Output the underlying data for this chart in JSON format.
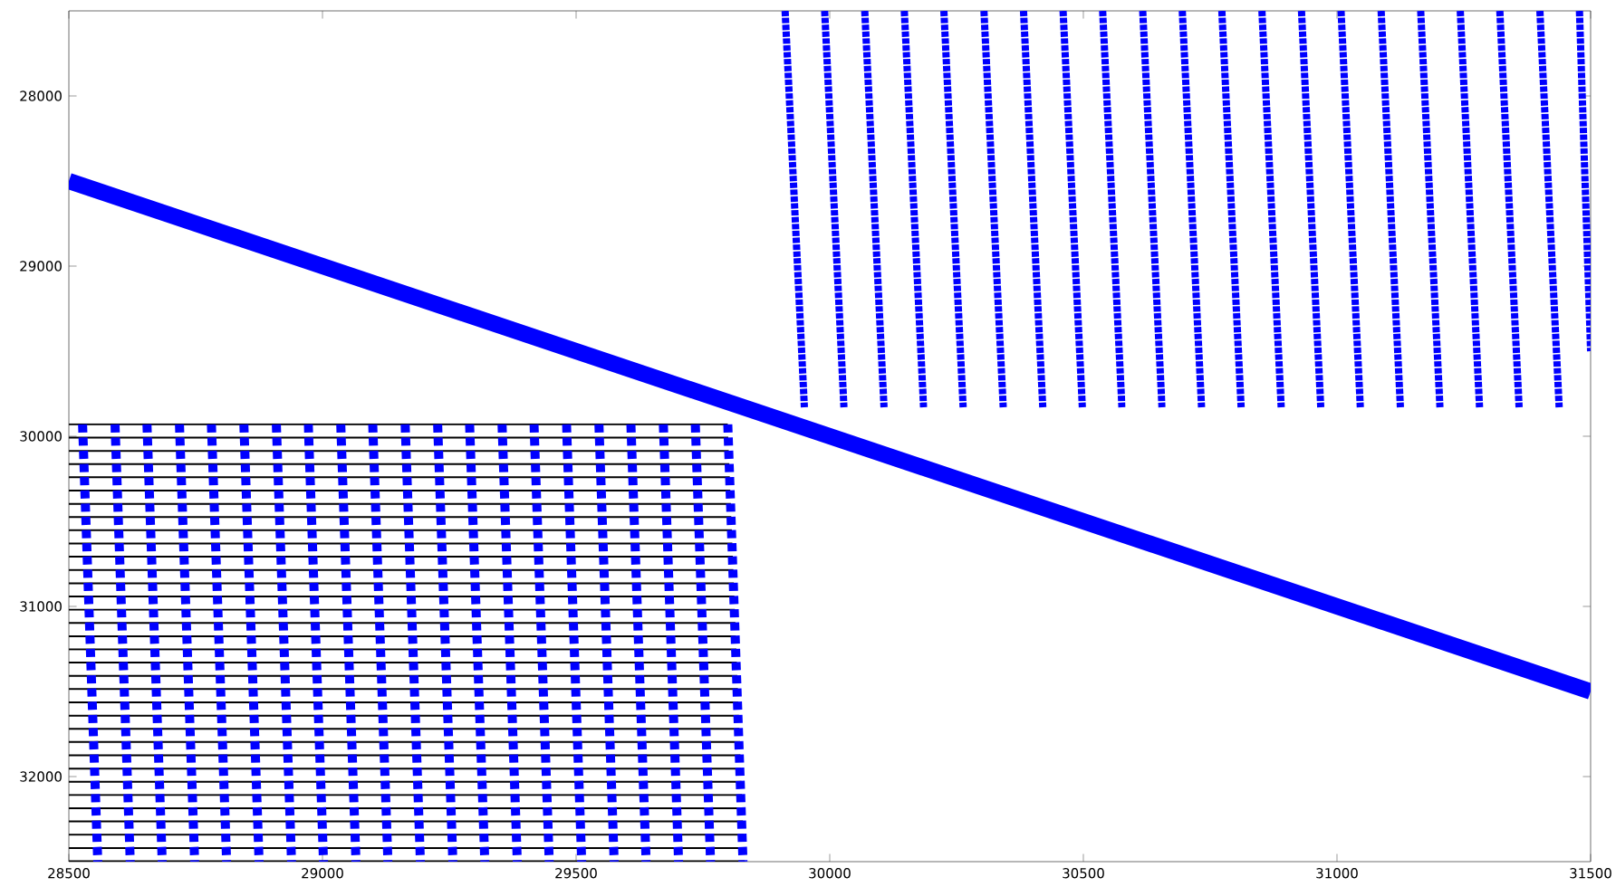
{
  "chart_data": {
    "type": "line",
    "xlim": [
      28500,
      31500
    ],
    "ylim": [
      32500,
      27500
    ],
    "xticks": [
      28500,
      29000,
      29500,
      30000,
      30500,
      31000,
      31500
    ],
    "yticks": [
      28000,
      29000,
      30000,
      31000,
      32000
    ],
    "series": [
      {
        "color": "#000000",
        "line_style": "solid",
        "x": [
          28500,
          29799
        ],
        "values": [
          29930,
          29930
        ]
      },
      {
        "color": "#000000",
        "line_style": "solid",
        "x": [
          28500,
          29800
        ],
        "values": [
          30008,
          30008
        ]
      },
      {
        "color": "#000000",
        "line_style": "solid",
        "x": [
          28500,
          29801
        ],
        "values": [
          30086,
          30086
        ]
      },
      {
        "color": "#000000",
        "line_style": "solid",
        "x": [
          28500,
          29802
        ],
        "values": [
          30163,
          30163
        ]
      },
      {
        "color": "#000000",
        "line_style": "solid",
        "x": [
          28500,
          29803
        ],
        "values": [
          30241,
          30241
        ]
      },
      {
        "color": "#000000",
        "line_style": "solid",
        "x": [
          28500,
          29804
        ],
        "values": [
          30319,
          30319
        ]
      },
      {
        "color": "#000000",
        "line_style": "solid",
        "x": [
          28500,
          29805
        ],
        "values": [
          30397,
          30397
        ]
      },
      {
        "color": "#000000",
        "line_style": "solid",
        "x": [
          28500,
          29806
        ],
        "values": [
          30475,
          30475
        ]
      },
      {
        "color": "#000000",
        "line_style": "solid",
        "x": [
          28500,
          29807
        ],
        "values": [
          30552,
          30552
        ]
      },
      {
        "color": "#000000",
        "line_style": "solid",
        "x": [
          28500,
          29808
        ],
        "values": [
          30630,
          30630
        ]
      },
      {
        "color": "#000000",
        "line_style": "solid",
        "x": [
          28500,
          29809
        ],
        "values": [
          30708,
          30708
        ]
      },
      {
        "color": "#000000",
        "line_style": "solid",
        "x": [
          28500,
          29810
        ],
        "values": [
          30786,
          30786
        ]
      },
      {
        "color": "#000000",
        "line_style": "solid",
        "x": [
          28500,
          29811
        ],
        "values": [
          30864,
          30864
        ]
      },
      {
        "color": "#000000",
        "line_style": "solid",
        "x": [
          28500,
          29812
        ],
        "values": [
          30941,
          30941
        ]
      },
      {
        "color": "#000000",
        "line_style": "solid",
        "x": [
          28500,
          29813
        ],
        "values": [
          31019,
          31019
        ]
      },
      {
        "color": "#000000",
        "line_style": "solid",
        "x": [
          28500,
          29814
        ],
        "values": [
          31097,
          31097
        ]
      },
      {
        "color": "#000000",
        "line_style": "solid",
        "x": [
          28500,
          29815
        ],
        "values": [
          31175,
          31175
        ]
      },
      {
        "color": "#000000",
        "line_style": "solid",
        "x": [
          28500,
          29816
        ],
        "values": [
          31253,
          31253
        ]
      },
      {
        "color": "#000000",
        "line_style": "solid",
        "x": [
          28500,
          29817
        ],
        "values": [
          31330,
          31330
        ]
      },
      {
        "color": "#000000",
        "line_style": "solid",
        "x": [
          28500,
          29818
        ],
        "values": [
          31408,
          31408
        ]
      },
      {
        "color": "#000000",
        "line_style": "solid",
        "x": [
          28500,
          29819
        ],
        "values": [
          31486,
          31486
        ]
      },
      {
        "color": "#000000",
        "line_style": "solid",
        "x": [
          28500,
          29820
        ],
        "values": [
          31564,
          31564
        ]
      },
      {
        "color": "#000000",
        "line_style": "solid",
        "x": [
          28500,
          29821
        ],
        "values": [
          31642,
          31642
        ]
      },
      {
        "color": "#000000",
        "line_style": "solid",
        "x": [
          28500,
          29822
        ],
        "values": [
          31719,
          31719
        ]
      },
      {
        "color": "#000000",
        "line_style": "solid",
        "x": [
          28500,
          29823
        ],
        "values": [
          31797,
          31797
        ]
      },
      {
        "color": "#000000",
        "line_style": "solid",
        "x": [
          28500,
          29824
        ],
        "values": [
          31875,
          31875
        ]
      },
      {
        "color": "#000000",
        "line_style": "solid",
        "x": [
          28500,
          29825
        ],
        "values": [
          31953,
          31953
        ]
      },
      {
        "color": "#000000",
        "line_style": "solid",
        "x": [
          28500,
          29826
        ],
        "values": [
          32031,
          32031
        ]
      },
      {
        "color": "#000000",
        "line_style": "solid",
        "x": [
          28500,
          29827
        ],
        "values": [
          32108,
          32108
        ]
      },
      {
        "color": "#000000",
        "line_style": "solid",
        "x": [
          28500,
          29828
        ],
        "values": [
          32186,
          32186
        ]
      },
      {
        "color": "#000000",
        "line_style": "solid",
        "x": [
          28500,
          29829
        ],
        "values": [
          32264,
          32264
        ]
      },
      {
        "color": "#000000",
        "line_style": "solid",
        "x": [
          28500,
          29830
        ],
        "values": [
          32342,
          32342
        ]
      },
      {
        "color": "#000000",
        "line_style": "solid",
        "x": [
          28500,
          29831
        ],
        "values": [
          32420,
          32420
        ]
      },
      {
        "color": "#000000",
        "line_style": "solid",
        "x": [
          28500,
          29832
        ],
        "values": [
          32497,
          32497
        ]
      },
      {
        "color": "#0000ff",
        "line_style": "dashed",
        "x": [
          28527,
          28557
        ],
        "values": [
          29930,
          32500
        ]
      },
      {
        "color": "#0000ff",
        "line_style": "dashed",
        "x": [
          28591,
          28621
        ],
        "values": [
          29930,
          32500
        ]
      },
      {
        "color": "#0000ff",
        "line_style": "dashed",
        "x": [
          28654,
          28684
        ],
        "values": [
          29930,
          32500
        ]
      },
      {
        "color": "#0000ff",
        "line_style": "dashed",
        "x": [
          28718,
          28748
        ],
        "values": [
          29930,
          32500
        ]
      },
      {
        "color": "#0000ff",
        "line_style": "dashed",
        "x": [
          28781,
          28811
        ],
        "values": [
          29930,
          32500
        ]
      },
      {
        "color": "#0000ff",
        "line_style": "dashed",
        "x": [
          28845,
          28875
        ],
        "values": [
          29930,
          32500
        ]
      },
      {
        "color": "#0000ff",
        "line_style": "dashed",
        "x": [
          28909,
          28939
        ],
        "values": [
          29930,
          32500
        ]
      },
      {
        "color": "#0000ff",
        "line_style": "dashed",
        "x": [
          28972,
          29002
        ],
        "values": [
          29930,
          32500
        ]
      },
      {
        "color": "#0000ff",
        "line_style": "dashed",
        "x": [
          29036,
          29066
        ],
        "values": [
          29930,
          32500
        ]
      },
      {
        "color": "#0000ff",
        "line_style": "dashed",
        "x": [
          29099,
          29129
        ],
        "values": [
          29930,
          32500
        ]
      },
      {
        "color": "#0000ff",
        "line_style": "dashed",
        "x": [
          29163,
          29193
        ],
        "values": [
          29930,
          32500
        ]
      },
      {
        "color": "#0000ff",
        "line_style": "dashed",
        "x": [
          29227,
          29257
        ],
        "values": [
          29930,
          32500
        ]
      },
      {
        "color": "#0000ff",
        "line_style": "dashed",
        "x": [
          29290,
          29320
        ],
        "values": [
          29930,
          32500
        ]
      },
      {
        "color": "#0000ff",
        "line_style": "dashed",
        "x": [
          29354,
          29384
        ],
        "values": [
          29930,
          32500
        ]
      },
      {
        "color": "#0000ff",
        "line_style": "dashed",
        "x": [
          29417,
          29447
        ],
        "values": [
          29930,
          32500
        ]
      },
      {
        "color": "#0000ff",
        "line_style": "dashed",
        "x": [
          29481,
          29511
        ],
        "values": [
          29930,
          32500
        ]
      },
      {
        "color": "#0000ff",
        "line_style": "dashed",
        "x": [
          29545,
          29575
        ],
        "values": [
          29930,
          32500
        ]
      },
      {
        "color": "#0000ff",
        "line_style": "dashed",
        "x": [
          29608,
          29638
        ],
        "values": [
          29930,
          32500
        ]
      },
      {
        "color": "#0000ff",
        "line_style": "dashed",
        "x": [
          29672,
          29702
        ],
        "values": [
          29930,
          32500
        ]
      },
      {
        "color": "#0000ff",
        "line_style": "dashed",
        "x": [
          29735,
          29765
        ],
        "values": [
          29930,
          32500
        ]
      },
      {
        "color": "#0000ff",
        "line_style": "dashed",
        "x": [
          29799,
          29829
        ],
        "values": [
          29930,
          32500
        ]
      },
      {
        "color": "#0000ff",
        "line_style": "solid",
        "x": [
          28500,
          31500
        ],
        "values": [
          28500,
          31500
        ]
      },
      {
        "color": "#0000ff",
        "line_style": "dotted",
        "x": [
          29912,
          29950
        ],
        "values": [
          27500,
          29830
        ]
      },
      {
        "color": "#0000ff",
        "line_style": "dotted",
        "x": [
          29990,
          30028
        ],
        "values": [
          27500,
          29830
        ]
      },
      {
        "color": "#0000ff",
        "line_style": "dotted",
        "x": [
          30069,
          30107
        ],
        "values": [
          27500,
          29830
        ]
      },
      {
        "color": "#0000ff",
        "line_style": "dotted",
        "x": [
          30147,
          30185
        ],
        "values": [
          27500,
          29830
        ]
      },
      {
        "color": "#0000ff",
        "line_style": "dotted",
        "x": [
          30225,
          30263
        ],
        "values": [
          27500,
          29830
        ]
      },
      {
        "color": "#0000ff",
        "line_style": "dotted",
        "x": [
          30304,
          30342
        ],
        "values": [
          27500,
          29830
        ]
      },
      {
        "color": "#0000ff",
        "line_style": "dotted",
        "x": [
          30382,
          30420
        ],
        "values": [
          27500,
          29830
        ]
      },
      {
        "color": "#0000ff",
        "line_style": "dotted",
        "x": [
          30460,
          30498
        ],
        "values": [
          27500,
          29830
        ]
      },
      {
        "color": "#0000ff",
        "line_style": "dotted",
        "x": [
          30538,
          30576
        ],
        "values": [
          27500,
          29830
        ]
      },
      {
        "color": "#0000ff",
        "line_style": "dotted",
        "x": [
          30617,
          30655
        ],
        "values": [
          27500,
          29830
        ]
      },
      {
        "color": "#0000ff",
        "line_style": "dotted",
        "x": [
          30695,
          30733
        ],
        "values": [
          27500,
          29830
        ]
      },
      {
        "color": "#0000ff",
        "line_style": "dotted",
        "x": [
          30773,
          30811
        ],
        "values": [
          27500,
          29830
        ]
      },
      {
        "color": "#0000ff",
        "line_style": "dotted",
        "x": [
          30852,
          30890
        ],
        "values": [
          27500,
          29830
        ]
      },
      {
        "color": "#0000ff",
        "line_style": "dotted",
        "x": [
          30930,
          30968
        ],
        "values": [
          27500,
          29830
        ]
      },
      {
        "color": "#0000ff",
        "line_style": "dotted",
        "x": [
          31008,
          31046
        ],
        "values": [
          27500,
          29830
        ]
      },
      {
        "color": "#0000ff",
        "line_style": "dotted",
        "x": [
          31087,
          31125
        ],
        "values": [
          27500,
          29830
        ]
      },
      {
        "color": "#0000ff",
        "line_style": "dotted",
        "x": [
          31165,
          31203
        ],
        "values": [
          27500,
          29830
        ]
      },
      {
        "color": "#0000ff",
        "line_style": "dotted",
        "x": [
          31243,
          31281
        ],
        "values": [
          27500,
          29830
        ]
      },
      {
        "color": "#0000ff",
        "line_style": "dotted",
        "x": [
          31321,
          31359
        ],
        "values": [
          27500,
          29830
        ]
      },
      {
        "color": "#0000ff",
        "line_style": "dotted",
        "x": [
          31400,
          31438
        ],
        "values": [
          27500,
          29830
        ]
      },
      {
        "color": "#0000ff",
        "line_style": "dotted",
        "x": [
          31478,
          31500
        ],
        "values": [
          27500,
          29500
        ]
      }
    ]
  }
}
